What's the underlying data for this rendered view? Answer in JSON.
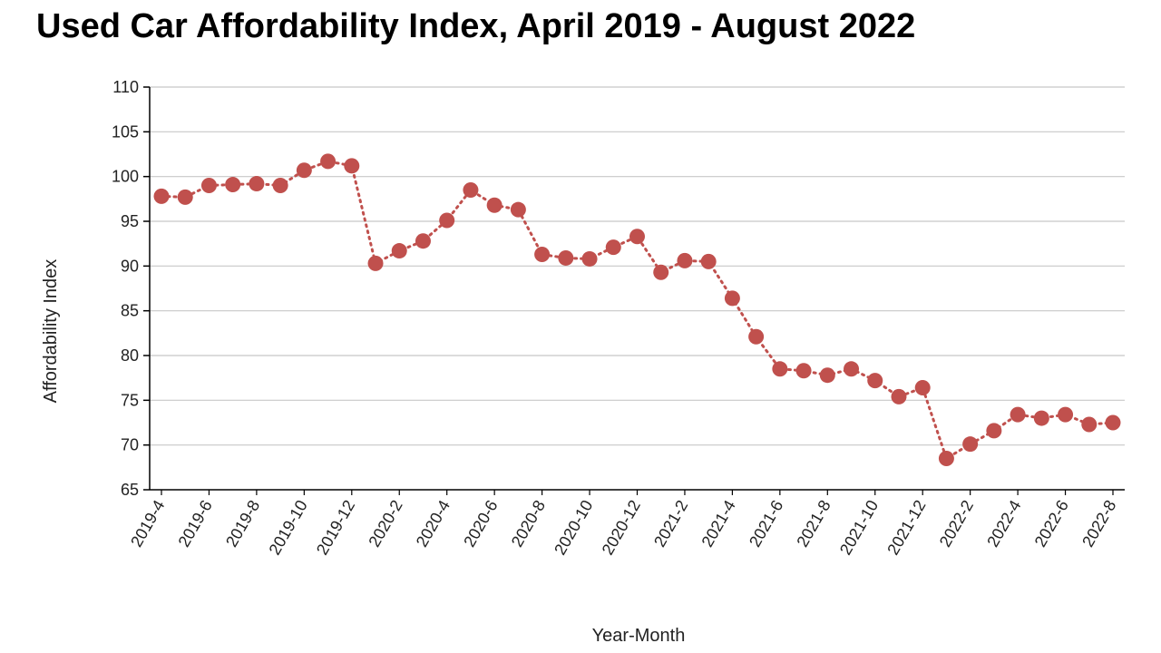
{
  "chart_data": {
    "type": "line",
    "title": "Used Car Affordability Index, April 2019 - August 2022",
    "xlabel": "Year-Month",
    "ylabel": "Affordability Index",
    "ylim": [
      65,
      110
    ],
    "yticks": [
      65,
      70,
      75,
      80,
      85,
      90,
      95,
      100,
      105,
      110
    ],
    "grid": true,
    "line_style": "dotted",
    "color": "#c0504d",
    "x": [
      "2019-4",
      "2019-5",
      "2019-6",
      "2019-7",
      "2019-8",
      "2019-9",
      "2019-10",
      "2019-11",
      "2019-12",
      "2020-1",
      "2020-2",
      "2020-3",
      "2020-4",
      "2020-5",
      "2020-6",
      "2020-7",
      "2020-8",
      "2020-9",
      "2020-10",
      "2020-11",
      "2020-12",
      "2021-1",
      "2021-2",
      "2021-3",
      "2021-4",
      "2021-5",
      "2021-6",
      "2021-7",
      "2021-8",
      "2021-9",
      "2021-10",
      "2021-11",
      "2021-12",
      "2022-1",
      "2022-2",
      "2022-3",
      "2022-4",
      "2022-5",
      "2022-6",
      "2022-7",
      "2022-8"
    ],
    "xtick_labels": [
      "2019-4",
      "2019-6",
      "2019-8",
      "2019-10",
      "2019-12",
      "2020-2",
      "2020-4",
      "2020-6",
      "2020-8",
      "2020-10",
      "2020-12",
      "2021-2",
      "2021-4",
      "2021-6",
      "2021-8",
      "2021-10",
      "2021-12",
      "2022-2",
      "2022-4",
      "2022-6",
      "2022-8"
    ],
    "series": [
      {
        "name": "Affordability Index",
        "values": [
          97.8,
          97.7,
          99.0,
          99.1,
          99.2,
          99.0,
          100.7,
          101.7,
          101.2,
          90.3,
          91.7,
          92.8,
          95.1,
          98.5,
          96.8,
          96.3,
          91.3,
          90.9,
          90.8,
          92.1,
          93.3,
          89.3,
          90.6,
          90.5,
          86.4,
          82.1,
          78.5,
          78.3,
          77.8,
          78.5,
          77.2,
          75.4,
          76.4,
          68.5,
          70.1,
          71.6,
          73.4,
          73.0,
          73.4,
          72.3,
          72.5
        ]
      }
    ]
  }
}
